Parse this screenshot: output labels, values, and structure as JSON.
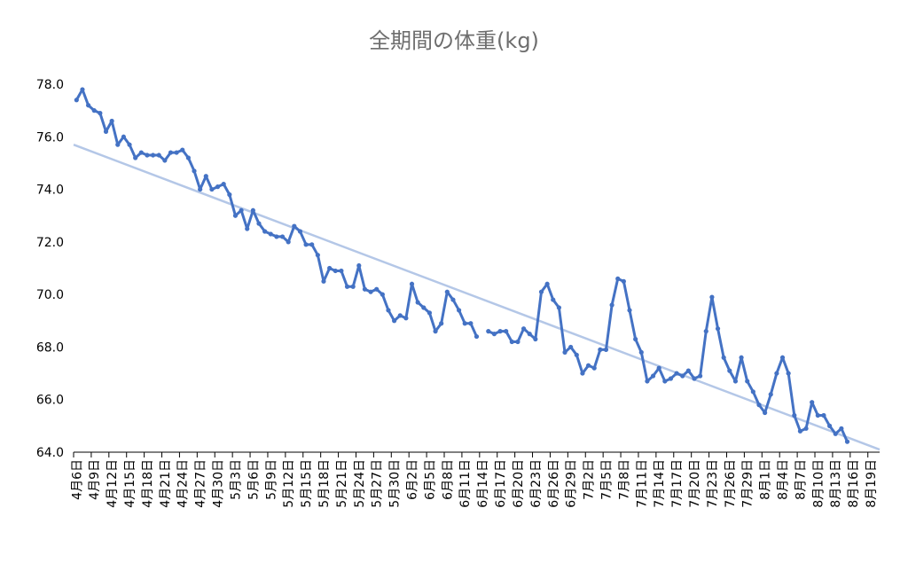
{
  "chart_data": {
    "type": "line",
    "title": "全期間の体重(kg)",
    "categories": [
      "4月6日",
      null,
      null,
      "4月9日",
      null,
      null,
      "4月12日",
      null,
      null,
      "4月15日",
      null,
      null,
      "4月18日",
      null,
      null,
      "4月21日",
      null,
      null,
      "4月24日",
      null,
      null,
      "4月27日",
      null,
      null,
      "4月30日",
      null,
      null,
      "5月3日",
      null,
      null,
      "5月6日",
      null,
      null,
      "5月9日",
      null,
      null,
      "5月12日",
      null,
      null,
      "5月15日",
      null,
      null,
      "5月18日",
      null,
      null,
      "5月21日",
      null,
      null,
      "5月24日",
      null,
      null,
      "5月27日",
      null,
      null,
      "5月30日",
      null,
      null,
      "6月2日",
      null,
      null,
      "6月5日",
      null,
      null,
      "6月8日",
      null,
      null,
      "6月11日",
      null,
      null,
      "6月14日",
      null,
      null,
      "6月17日",
      null,
      null,
      "6月20日",
      null,
      null,
      "6月23日",
      null,
      null,
      "6月26日",
      null,
      null,
      "6月29日",
      null,
      null,
      "7月2日",
      null,
      null,
      "7月5日",
      null,
      null,
      "7月8日",
      null,
      null,
      "7月11日",
      null,
      null,
      "7月14日",
      null,
      null,
      "7月17日",
      null,
      null,
      "7月20日",
      null,
      null,
      "7月23日",
      null,
      null,
      "7月26日",
      null,
      null,
      "7月29日",
      null,
      null,
      "8月1日",
      null,
      null,
      "8月4日",
      null,
      null,
      "8月7日",
      null,
      null,
      "8月10日",
      null,
      null,
      "8月13日",
      null,
      null,
      "8月16日",
      null,
      null,
      "8月19日",
      null
    ],
    "values": [
      77.4,
      77.8,
      77.2,
      77.0,
      76.9,
      76.2,
      76.6,
      75.7,
      76.0,
      75.7,
      75.2,
      75.4,
      75.3,
      75.3,
      75.3,
      75.1,
      75.4,
      75.4,
      75.5,
      75.2,
      74.7,
      74.0,
      74.5,
      74.0,
      74.1,
      74.2,
      73.8,
      73.0,
      73.2,
      72.5,
      73.2,
      72.7,
      72.4,
      72.3,
      72.2,
      72.2,
      72.0,
      72.6,
      72.4,
      71.9,
      71.9,
      71.5,
      70.5,
      71.0,
      70.9,
      70.9,
      70.3,
      70.3,
      71.1,
      70.2,
      70.1,
      70.2,
      70.0,
      69.4,
      69.0,
      69.2,
      69.1,
      70.4,
      69.7,
      69.5,
      69.3,
      68.6,
      68.9,
      70.1,
      69.8,
      69.4,
      68.9,
      68.9,
      68.4,
      null,
      68.6,
      68.5,
      68.6,
      68.6,
      68.2,
      68.2,
      68.7,
      68.5,
      68.3,
      70.1,
      70.4,
      69.8,
      69.5,
      67.8,
      68.0,
      67.7,
      67.0,
      67.3,
      67.2,
      67.9,
      67.9,
      69.6,
      70.6,
      70.5,
      69.4,
      68.3,
      67.8,
      66.7,
      66.9,
      67.2,
      66.7,
      66.8,
      67.0,
      66.9,
      67.1,
      66.8,
      66.9,
      68.6,
      69.9,
      68.7,
      67.6,
      67.1,
      66.7,
      67.6,
      66.7,
      66.3,
      65.8,
      65.5,
      66.2,
      67.0,
      67.6,
      67.0,
      65.4,
      64.8,
      64.9,
      65.9,
      65.4,
      65.4,
      65.0,
      64.7,
      64.9,
      64.4,
      null,
      null,
      null,
      null,
      null
    ],
    "color": "#4472c4",
    "trendline": {
      "color": "#b4c7e7",
      "start": 75.7,
      "end": 64.1
    },
    "ylim": [
      64,
      78
    ],
    "yticks": [
      {
        "value": 64,
        "label": "64.0"
      },
      {
        "value": 66,
        "label": "66.0"
      },
      {
        "value": 68,
        "label": "68.0"
      },
      {
        "value": 70,
        "label": "70.0"
      },
      {
        "value": 72,
        "label": "72.0"
      },
      {
        "value": 74,
        "label": "74.0"
      },
      {
        "value": 76,
        "label": "76.0"
      },
      {
        "value": 78,
        "label": "78.0"
      }
    ]
  }
}
